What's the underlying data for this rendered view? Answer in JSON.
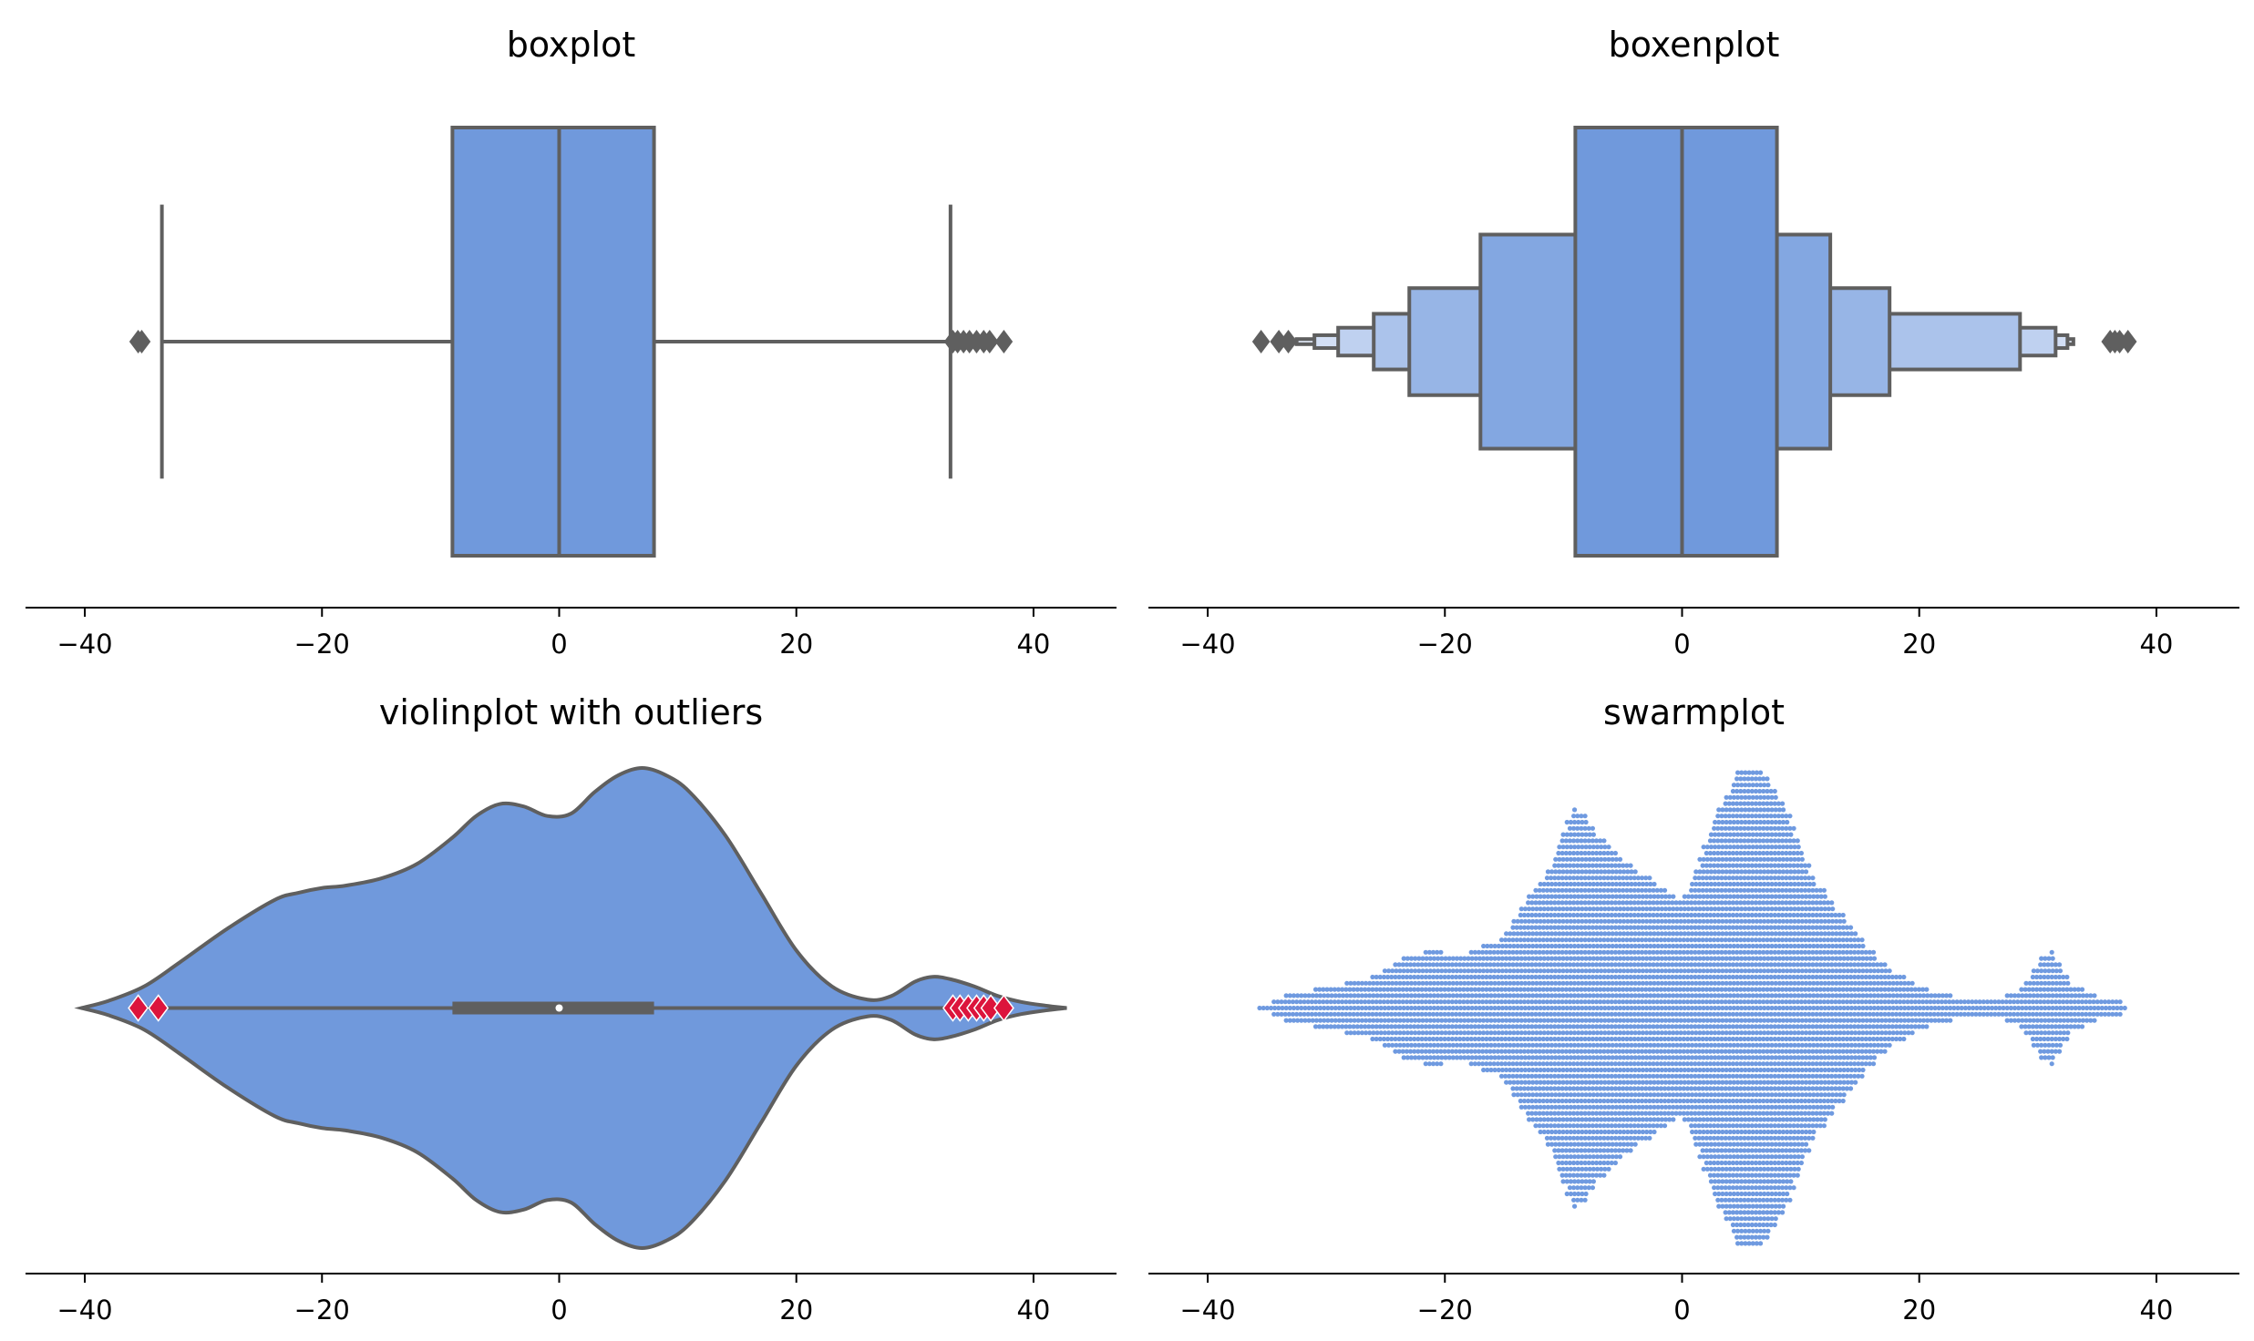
{
  "chart_data": [
    {
      "type": "boxplot",
      "title": "boxplot",
      "xlim": [
        -45,
        47
      ],
      "xticks": [
        "−40",
        "−20",
        "0",
        "20",
        "40"
      ],
      "xtick_values": [
        -40,
        -20,
        0,
        20,
        40
      ],
      "box": {
        "q1": -9,
        "median": 0,
        "q3": 8,
        "whisker_low": -33.5,
        "whisker_high": 33
      },
      "outliers": [
        -35.5,
        -35.2,
        33.2,
        33.6,
        34.1,
        34.6,
        35.2,
        35.8,
        36.3,
        37.5
      ],
      "colors": {
        "fill": "#7099dc",
        "line": "#5f5f5f"
      }
    },
    {
      "type": "boxenplot",
      "title": "boxenplot",
      "xlim": [
        -45,
        47
      ],
      "xticks": [
        "−40",
        "−20",
        "0",
        "20",
        "40"
      ],
      "xtick_values": [
        -40,
        -20,
        0,
        20,
        40
      ],
      "median": 0,
      "levels": [
        {
          "low": -9,
          "high": 8,
          "height_frac": 1.0,
          "color": "#7099dc"
        },
        {
          "low": -17,
          "high": 12.5,
          "height_frac": 0.5,
          "color": "#83a7e1"
        },
        {
          "low": -23,
          "high": 17.5,
          "height_frac": 0.25,
          "color": "#97b5e6"
        },
        {
          "low": -26,
          "high": 28.5,
          "height_frac": 0.13,
          "color": "#abc3eb"
        },
        {
          "low": -29,
          "high": 31.5,
          "height_frac": 0.065,
          "color": "#bfd1f0"
        },
        {
          "low": -31,
          "high": 32.5,
          "height_frac": 0.03,
          "color": "#d3dff5"
        },
        {
          "low": -32.5,
          "high": 33,
          "height_frac": 0.012,
          "color": "#e5ecfa"
        }
      ],
      "outliers": [
        -35.5,
        -34,
        -33.2,
        36.1,
        36.5,
        36.9,
        37.6
      ],
      "colors": {
        "line": "#5f5f5f"
      }
    },
    {
      "type": "violin",
      "title": "violinplot with outliers",
      "xlim": [
        -45,
        47
      ],
      "xticks": [
        "−40",
        "−20",
        "0",
        "20",
        "40"
      ],
      "xtick_values": [
        -40,
        -20,
        0,
        20,
        40
      ],
      "density_x": [
        -40.3,
        -38,
        -35,
        -32,
        -28,
        -24,
        -22,
        -20,
        -18,
        -15,
        -12,
        -9,
        -7,
        -5,
        -3,
        -1,
        1,
        3,
        5,
        7,
        9,
        11,
        14,
        17,
        20,
        23,
        26,
        28,
        30,
        31.5,
        33,
        35,
        37,
        39,
        41,
        42.8
      ],
      "density_half_width": [
        0.0,
        0.03,
        0.09,
        0.19,
        0.33,
        0.45,
        0.48,
        0.5,
        0.51,
        0.54,
        0.6,
        0.71,
        0.8,
        0.85,
        0.84,
        0.8,
        0.81,
        0.9,
        0.97,
        1.0,
        0.97,
        0.9,
        0.72,
        0.48,
        0.24,
        0.09,
        0.035,
        0.05,
        0.11,
        0.13,
        0.12,
        0.09,
        0.05,
        0.025,
        0.01,
        0.0
      ],
      "box": {
        "q1": -9,
        "median": 0,
        "q3": 8,
        "whisker_low": -35.5,
        "whisker_high": 37.5
      },
      "outliers": [
        -35.5,
        -33.8,
        33.2,
        33.8,
        34.5,
        35.2,
        35.8,
        36.4,
        37.5
      ],
      "colors": {
        "fill": "#7099dc",
        "line": "#5f5f5f",
        "outlier": "#dc143c",
        "median": "#ffffff"
      }
    },
    {
      "type": "swarm",
      "title": "swarmplot",
      "xlim": [
        -45,
        47
      ],
      "xticks": [
        "−40",
        "−20",
        "0",
        "20",
        "40"
      ],
      "xtick_values": [
        -40,
        -20,
        0,
        20,
        40
      ],
      "profile_x": [
        -35.5,
        -33,
        -31,
        -29,
        -27,
        -25,
        -23,
        -21,
        -19,
        -17,
        -15,
        -13,
        -11,
        -9,
        -7,
        -5,
        -3,
        -1,
        0,
        1,
        3,
        5,
        7,
        9,
        11,
        13,
        15,
        17,
        19,
        21,
        23,
        25,
        27,
        29,
        31,
        33,
        35,
        37.5
      ],
      "profile_half_width": [
        0.01,
        0.06,
        0.08,
        0.1,
        0.11,
        0.16,
        0.22,
        0.24,
        0.22,
        0.25,
        0.3,
        0.45,
        0.6,
        0.85,
        0.72,
        0.62,
        0.55,
        0.48,
        0.45,
        0.55,
        0.82,
        1.0,
        0.98,
        0.8,
        0.55,
        0.42,
        0.3,
        0.18,
        0.12,
        0.07,
        0.05,
        0.05,
        0.04,
        0.1,
        0.25,
        0.1,
        0.05,
        0.02
      ],
      "colors": {
        "point": "#6f9ae0"
      }
    }
  ]
}
